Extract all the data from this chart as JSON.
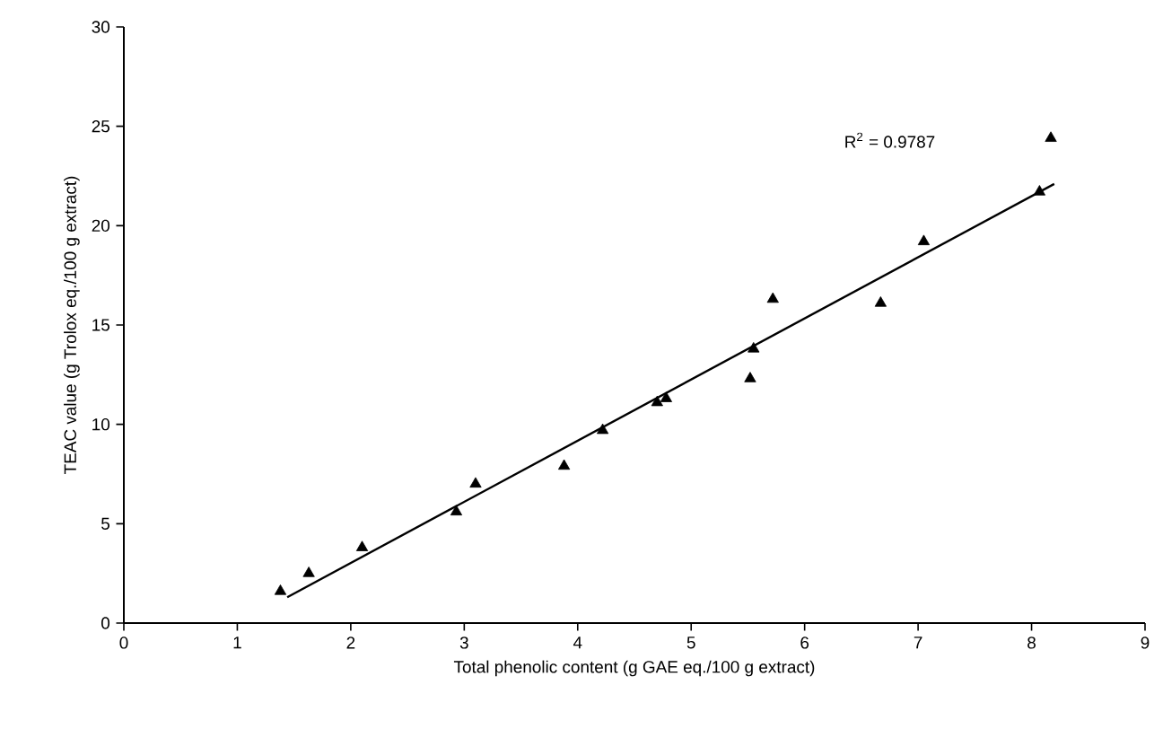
{
  "chart_data": {
    "type": "scatter",
    "xlabel": "Total phenolic content (g GAE eq./100 g extract)",
    "ylabel": "TEAC value (g Trolox eq./100 g extract)",
    "xlim": [
      0,
      9
    ],
    "ylim": [
      0,
      30
    ],
    "xticks": [
      0,
      1,
      2,
      3,
      4,
      5,
      6,
      7,
      8,
      9
    ],
    "yticks": [
      0,
      5,
      10,
      15,
      20,
      25,
      30
    ],
    "grid": false,
    "series": [
      {
        "marker": "triangle",
        "color": "#000000",
        "x": [
          1.38,
          1.63,
          2.1,
          2.93,
          3.1,
          3.88,
          4.22,
          4.7,
          4.78,
          5.52,
          5.55,
          5.72,
          6.67,
          7.05,
          8.07,
          8.17
        ],
        "values": [
          1.6,
          2.5,
          3.8,
          5.6,
          7.0,
          7.9,
          9.7,
          11.1,
          11.3,
          12.3,
          13.8,
          16.3,
          16.1,
          19.2,
          21.7,
          24.4
        ]
      },
      {
        "type": "line",
        "marker": "none",
        "color": "#000000",
        "x": [
          1.44,
          8.2
        ],
        "values": [
          1.3,
          22.1
        ]
      }
    ],
    "annotations": [
      "R$^{2}$ = 0.9787"
    ]
  }
}
